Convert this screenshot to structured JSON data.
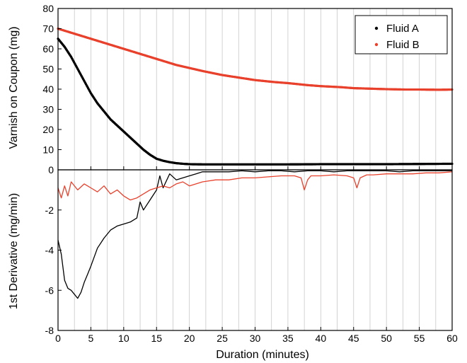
{
  "chart_data": [
    {
      "type": "scatter",
      "panel": "top",
      "title": "",
      "xlabel": "Duration (minutes)",
      "ylabel": "Varnish on Coupon (mg)",
      "xlim": [
        0,
        60
      ],
      "ylim": [
        0,
        80
      ],
      "xticks": [
        0,
        5,
        10,
        15,
        20,
        25,
        30,
        35,
        40,
        45,
        50,
        55,
        60
      ],
      "yticks": [
        0,
        10,
        20,
        30,
        40,
        50,
        60,
        70,
        80
      ],
      "grid": "vertical lines at every 2.5 minutes",
      "legend_position": "top-right",
      "series": [
        {
          "name": "Fluid A",
          "color": "#000000",
          "x": [
            0,
            1,
            2,
            3,
            4,
            5,
            6,
            7,
            8,
            9,
            10,
            11,
            12,
            13,
            14,
            15,
            16,
            17,
            18,
            19,
            20,
            22,
            25,
            30,
            35,
            40,
            45,
            50,
            55,
            60
          ],
          "y": [
            65,
            61,
            56,
            50,
            44,
            38,
            33,
            29,
            25,
            22,
            19,
            16,
            13,
            10,
            7.5,
            5.5,
            4.5,
            3.8,
            3.3,
            3.0,
            2.8,
            2.7,
            2.7,
            2.7,
            2.7,
            2.8,
            2.8,
            2.8,
            2.9,
            3.0
          ]
        },
        {
          "name": "Fluid B",
          "color": "#e8412c",
          "x": [
            0,
            2,
            4,
            6,
            8,
            10,
            12,
            14,
            16,
            18,
            20,
            22,
            25,
            28,
            30,
            33,
            35,
            38,
            40,
            43,
            45,
            48,
            50,
            53,
            55,
            58,
            60
          ],
          "y": [
            70,
            68,
            66,
            64,
            62,
            60,
            58,
            56,
            54,
            52,
            50.5,
            49,
            47,
            45.5,
            44.5,
            43.5,
            43,
            42,
            41.5,
            41,
            40.5,
            40.2,
            40,
            39.8,
            39.8,
            39.7,
            39.8
          ]
        }
      ]
    },
    {
      "type": "line",
      "panel": "bottom",
      "title": "",
      "xlabel": "Duration (minutes)",
      "ylabel": "1st Derivative (mg/min)",
      "xlim": [
        0,
        60
      ],
      "ylim": [
        -8,
        0
      ],
      "xticks": [
        0,
        5,
        10,
        15,
        20,
        25,
        30,
        35,
        40,
        45,
        50,
        55,
        60
      ],
      "yticks": [
        -8,
        -6,
        -4,
        -2
      ],
      "grid": "vertical lines at every 2.5 minutes",
      "series": [
        {
          "name": "Fluid A",
          "color": "#000000",
          "x": [
            0,
            0.5,
            1,
            1.5,
            2,
            2.5,
            3,
            3.5,
            4,
            4.5,
            5,
            6,
            7,
            8,
            9,
            10,
            11,
            12,
            12.5,
            13,
            14,
            15,
            15.5,
            16,
            17,
            18,
            19,
            20,
            21,
            22,
            24,
            26,
            28,
            30,
            32,
            34,
            36,
            38,
            40,
            42,
            44,
            46,
            48,
            50,
            52,
            54,
            56,
            58,
            60
          ],
          "y": [
            -3.5,
            -4.2,
            -5.5,
            -5.9,
            -6.0,
            -6.2,
            -6.4,
            -6.1,
            -5.6,
            -5.2,
            -4.8,
            -3.9,
            -3.4,
            -3.0,
            -2.8,
            -2.7,
            -2.6,
            -2.4,
            -1.6,
            -2.0,
            -1.5,
            -1.0,
            -0.3,
            -0.9,
            -0.2,
            -0.5,
            -0.4,
            -0.3,
            -0.2,
            -0.1,
            -0.1,
            -0.1,
            -0.05,
            -0.1,
            -0.05,
            -0.05,
            -0.1,
            -0.05,
            -0.05,
            -0.1,
            -0.05,
            -0.05,
            -0.05,
            -0.05,
            -0.1,
            -0.05,
            -0.05,
            -0.05,
            -0.05
          ]
        },
        {
          "name": "Fluid B",
          "color": "#e8412c",
          "x": [
            0,
            0.5,
            1,
            1.5,
            2,
            3,
            4,
            5,
            6,
            7,
            8,
            9,
            10,
            11,
            12,
            13,
            14,
            15,
            16,
            17,
            18,
            19,
            20,
            22,
            24,
            26,
            28,
            30,
            32,
            34,
            36,
            37,
            37.5,
            38,
            38.5,
            40,
            42,
            44,
            45,
            45.5,
            46,
            47,
            48,
            50,
            52,
            54,
            56,
            58,
            60
          ],
          "y": [
            -0.9,
            -1.4,
            -0.8,
            -1.3,
            -0.6,
            -1.0,
            -0.7,
            -0.9,
            -1.1,
            -0.8,
            -1.2,
            -1.0,
            -1.3,
            -1.5,
            -1.4,
            -1.2,
            -1.0,
            -0.9,
            -0.8,
            -0.9,
            -0.7,
            -0.6,
            -0.8,
            -0.6,
            -0.5,
            -0.5,
            -0.4,
            -0.4,
            -0.35,
            -0.3,
            -0.3,
            -0.4,
            -1.0,
            -0.5,
            -0.3,
            -0.3,
            -0.25,
            -0.3,
            -0.4,
            -0.9,
            -0.4,
            -0.25,
            -0.25,
            -0.2,
            -0.2,
            -0.2,
            -0.15,
            -0.15,
            -0.1
          ]
        }
      ]
    }
  ]
}
